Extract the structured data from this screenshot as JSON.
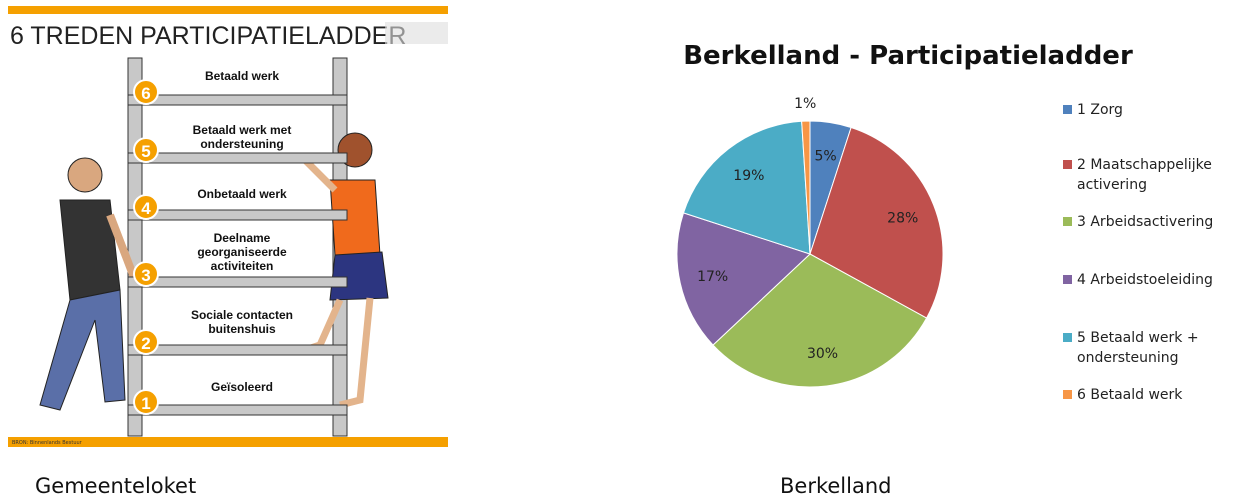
{
  "infographic": {
    "title": "6 TREDEN PARTICIPATIELADDER",
    "rungs": [
      {
        "number": 6,
        "label": "Betaald werk"
      },
      {
        "number": 5,
        "label": "Betaald werk met ondersteuning"
      },
      {
        "number": 4,
        "label": "Onbetaald werk"
      },
      {
        "number": 3,
        "label": "Deelname georganiseerde activiteiten"
      },
      {
        "number": 2,
        "label": "Sociale contacten buitenshuis"
      },
      {
        "number": 1,
        "label": "Geïsoleerd"
      }
    ],
    "source": "BRON: Binnenlands Bestuur",
    "caption": "Gemeenteloket"
  },
  "chart_data": {
    "type": "pie",
    "title": "Berkelland - Participatieladder",
    "categories": [
      "1 Zorg",
      "2 Maatschappelijke activering",
      "3 Arbeidsactivering",
      "4 Arbeidstoeleiding",
      "5 Betaald werk + ondersteuning",
      "6 Betaald werk"
    ],
    "values": [
      5,
      28,
      30,
      17,
      19,
      1
    ],
    "value_labels": [
      "5%",
      "28%",
      "30%",
      "17%",
      "19%",
      "1%"
    ],
    "colors": [
      "#4f81bd",
      "#c0504d",
      "#9bbb59",
      "#8064a2",
      "#4bacc6",
      "#f79646"
    ],
    "legend": "right"
  },
  "chart_caption": "Berkelland"
}
